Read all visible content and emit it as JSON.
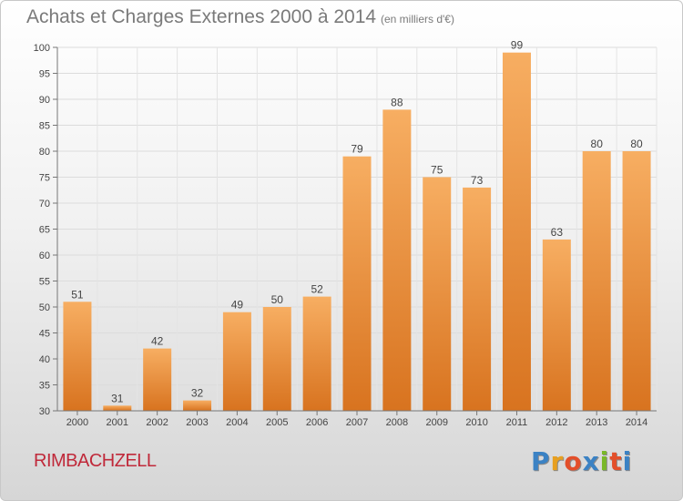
{
  "header": {
    "title": "Achats et Charges Externes 2000 à 2014",
    "subtitle": "(en milliers d'€)"
  },
  "footer": {
    "commune": "RIMBACHZELL",
    "logo_letters": [
      "P",
      "r",
      "o",
      "x",
      "i",
      "t",
      "i"
    ],
    "logo_colors": [
      "#3b82c4",
      "#e8a020",
      "#e34f2a",
      "#3b82c4",
      "#7ab829",
      "#e34f2a",
      "#3b82c4"
    ]
  },
  "chart_data": {
    "type": "bar",
    "categories": [
      "2000",
      "2001",
      "2002",
      "2003",
      "2004",
      "2005",
      "2006",
      "2007",
      "2008",
      "2009",
      "2010",
      "2011",
      "2012",
      "2013",
      "2014"
    ],
    "values": [
      51,
      31,
      42,
      32,
      49,
      50,
      52,
      79,
      88,
      75,
      73,
      99,
      63,
      80,
      80
    ],
    "ylim": [
      30,
      100
    ],
    "yticks": [
      30,
      35,
      40,
      45,
      50,
      55,
      60,
      65,
      70,
      75,
      80,
      85,
      90,
      95,
      100
    ],
    "grid": true,
    "bar_color": "#ee8a2e",
    "bar_color_light": "#f7ae62"
  }
}
